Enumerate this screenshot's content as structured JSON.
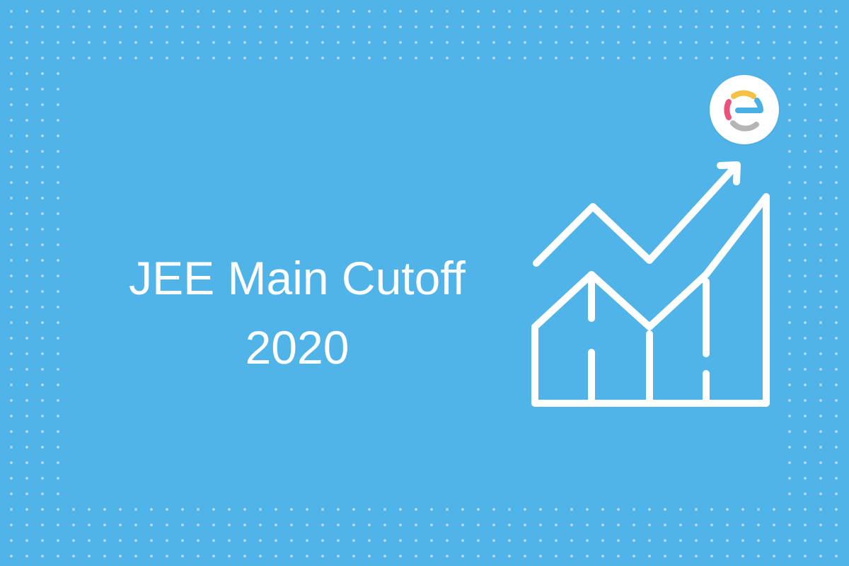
{
  "banner": {
    "title_line1": "JEE Main Cutoff",
    "title_line2": "2020"
  },
  "icons": {
    "logo": "embibe-e-logo",
    "chart": "growth-chart-icon"
  },
  "colors": {
    "background": "#50b4e8",
    "text": "#ffffff",
    "logo_yellow": "#f5c044",
    "logo_pink": "#e9527a",
    "logo_gray": "#b5b5b5",
    "logo_blue": "#49b0e6"
  }
}
